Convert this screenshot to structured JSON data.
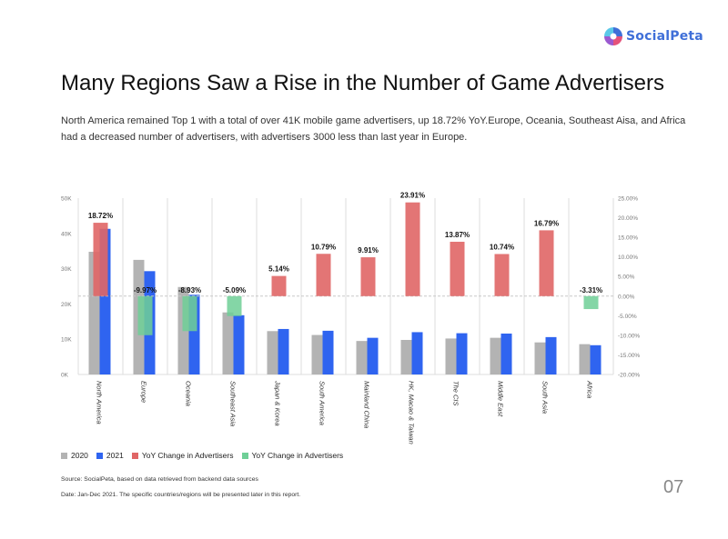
{
  "brand": {
    "name": "SocialPeta"
  },
  "page": {
    "title": "Many Regions Saw a Rise in the Number of Game Advertisers",
    "subtitle": "North America remained Top 1 with a total of over 41K mobile game advertisers, up 18.72% YoY.Europe, Oceania, Southeast Aisa, and Africa had a decreased number of advertisers, with advertisers 3000 less than last year in Europe.",
    "source": "Source: SocialPeta, based on data retrieved from backend data sources",
    "date_note": "Date: Jan-Dec 2021. The specific countries/regions will be presented later in this report.",
    "page_number": "07"
  },
  "colors": {
    "s2020": "#b3b3b3",
    "s2021": "#2f64f0",
    "yoy_up": "#e06666",
    "yoy_down": "#6fcf97",
    "grid": "#dddddd",
    "axis_text": "#777777"
  },
  "legend": [
    {
      "label": "2020",
      "color": "#b3b3b3"
    },
    {
      "label": "2021",
      "color": "#2f64f0"
    },
    {
      "label": "YoY Change in Advertisers",
      "color": "#e06666"
    },
    {
      "label": "YoY Change in Advertisers",
      "color": "#6fcf97"
    }
  ],
  "chart_data": {
    "type": "bar",
    "categories": [
      "North America",
      "Europe",
      "Oceania",
      "Southeast Asia",
      "Japan & Korea",
      "South America",
      "Mainland China",
      "HK, Macao & Taiwan",
      "The CIS",
      "Middle East",
      "South Asia",
      "Africa"
    ],
    "series": [
      {
        "name": "2020",
        "axis": "left",
        "values": [
          34800,
          32500,
          24800,
          17600,
          12300,
          11200,
          9500,
          9800,
          10200,
          10400,
          9100,
          8600
        ]
      },
      {
        "name": "2021",
        "axis": "left",
        "values": [
          41300,
          29300,
          22600,
          16800,
          12900,
          12400,
          10400,
          12000,
          11700,
          11600,
          10600,
          8300
        ]
      },
      {
        "name": "YoY Change in Advertisers",
        "axis": "right",
        "values": [
          18.72,
          -9.97,
          -8.93,
          -5.09,
          5.14,
          10.79,
          9.91,
          23.91,
          13.87,
          10.74,
          16.79,
          -3.31
        ]
      }
    ],
    "data_labels": [
      "18.72%",
      "-9.97%",
      "-8.93%",
      "-5.09%",
      "5.14%",
      "10.79%",
      "9.91%",
      "23.91%",
      "13.87%",
      "10.74%",
      "16.79%",
      "-3.31%"
    ],
    "left_axis": {
      "min": 0,
      "max": 50000,
      "ticks": [
        "0K",
        "10K",
        "20K",
        "30K",
        "40K",
        "50K"
      ]
    },
    "right_axis": {
      "min": -20,
      "max": 25,
      "ticks": [
        "-20.00%",
        "-15.00%",
        "-10.00%",
        "-5.00%",
        "0.00%",
        "5.00%",
        "10.00%",
        "15.00%",
        "20.00%",
        "25.00%"
      ]
    },
    "grid": "vertical",
    "legend_position": "bottom-left"
  }
}
